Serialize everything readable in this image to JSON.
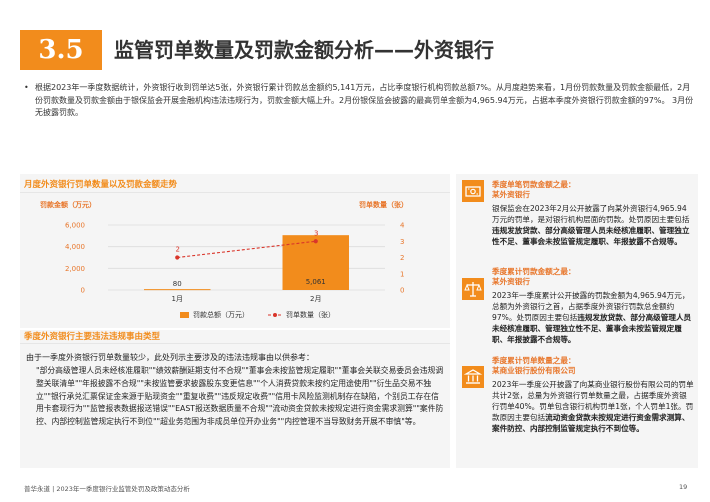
{
  "header": {
    "section_number": "3.5",
    "title": "监管罚单数量及罚款金额分析——外资银行"
  },
  "intro": {
    "bullet": "•",
    "text": "根据2023年一季度数据统计，外资银行收到罚单达5张，外资银行累计罚款总金额约5,141万元，占比季度银行机构罚款总额7%。从月度趋势来看，1月份罚款数量及罚款金额最低，2月份罚款数量及罚款金额由于银保监会开展金融机构违法违规行为，罚款金额大幅上升。2月份银保监会披露的最高罚单金额为4,965.94万元，占据本季度外资银行罚款金额的97%。 3月份无披露罚款。"
  },
  "chart_section": {
    "title": "月度外资银行罚单数量以及罚款金额走势"
  },
  "chart_data": {
    "type": "bar",
    "categories": [
      "1月",
      "2月"
    ],
    "y_left_label": "罚款金额（万元）",
    "y_right_label": "罚单数量（张）",
    "y_left_ticks": [
      "6,000",
      "4,000",
      "2,000",
      "0"
    ],
    "y_right_ticks": [
      "4",
      "3",
      "2",
      "1",
      "0"
    ],
    "ylim_left": [
      0,
      6000
    ],
    "ylim_right": [
      0,
      4
    ],
    "series": [
      {
        "name": "罚款总额（万元）",
        "kind": "bar",
        "axis": "left",
        "values": [
          80,
          5061
        ],
        "labels": [
          "80",
          "5,061"
        ]
      },
      {
        "name": "罚单数量（张）",
        "kind": "line",
        "axis": "right",
        "values": [
          2,
          3
        ],
        "labels": [
          "2",
          "3"
        ]
      }
    ],
    "grid": true,
    "legend_position": "bottom",
    "colors": {
      "bar": "#f28c1c",
      "line": "#d9352a"
    }
  },
  "reasons": {
    "title": "季度外资银行主要违法违规事由类型",
    "intro": "由于一季度外资银行罚单数量较少，此处列示主要涉及的违法违规事由以供参考：",
    "text": "\"部分高级管理人员未经核准履职\"\"绩效薪酬延期支付不合规\"\"董事会未按监管规定履职\"\"董事会关联交易委员会违规调整关联清单\"\"年报披露不合规\"\"未按监管要求披露股东变更信息\"\"个人消费贷款未按约定用途使用\"\"衍生品交易不独立\"\"银行承兑汇票保证金来源于贴现资金\"\"重复收费\"\"违反规定收费\"\"信用卡风险监测机制存在缺陷，个别员工存在信用卡套现行为\"\"监管报表数据报送错误\"\"EAST报送数据质量不合规\"\"流动资金贷款未按规定进行资金需求测算\"\"案件防控、内部控制监管规定执行不到位\"\"超业务范围为非成员单位开办业务\"\"内控管理不当导致财务开展不审慎\"等。"
  },
  "cards": [
    {
      "icon": "money-card-icon",
      "title_line1": "季度单笔罚款金额之最：",
      "title_line2": "某外资银行",
      "body_plain": "银保监会在2023年2月公开披露了向某外资银行4,965.94万元的罚单，是对银行机构层面的罚款。处罚原因主要包括",
      "body_bold": "违规发放贷款、部分高级管理人员未经核准履职、管理独立性不足、董事会未按监管规定履职、年报披露不合规等。"
    },
    {
      "icon": "scale-icon",
      "title_line1": "季度累计罚款金额之最：",
      "title_line2": "某外资银行",
      "body_plain": "2023年一季度累计公开披露的罚款金额为4,965.94万元，总额为外资银行之首，占据季度外资银行罚款总金额约97%。处罚原因主要包括",
      "body_bold": "违规发放贷款、部分高级管理人员未经核准履职、管理独立性不足、董事会未按监管规定履职、年报披露不合规等。"
    },
    {
      "icon": "bank-icon",
      "title_line1": "季度累计罚单数量之最：",
      "title_line2": "某商业银行股份有限公司",
      "body_plain": "2023年一季度公开披露了向某商业银行股份有限公司的罚单共计2张，总量为外资银行罚单数量之最，占据季度外资银行罚单40%。罚单包含银行机构罚单1张，个人罚单1张。罚款原因主要包括",
      "body_bold": "流动资金贷款未按规定进行资金需求测算、案件防控、内部控制监管规定执行不到位等。"
    }
  ],
  "footer": {
    "left": "普华永道 | 2023年一季度银行业监管处罚及政策动态分析",
    "page": "19"
  }
}
